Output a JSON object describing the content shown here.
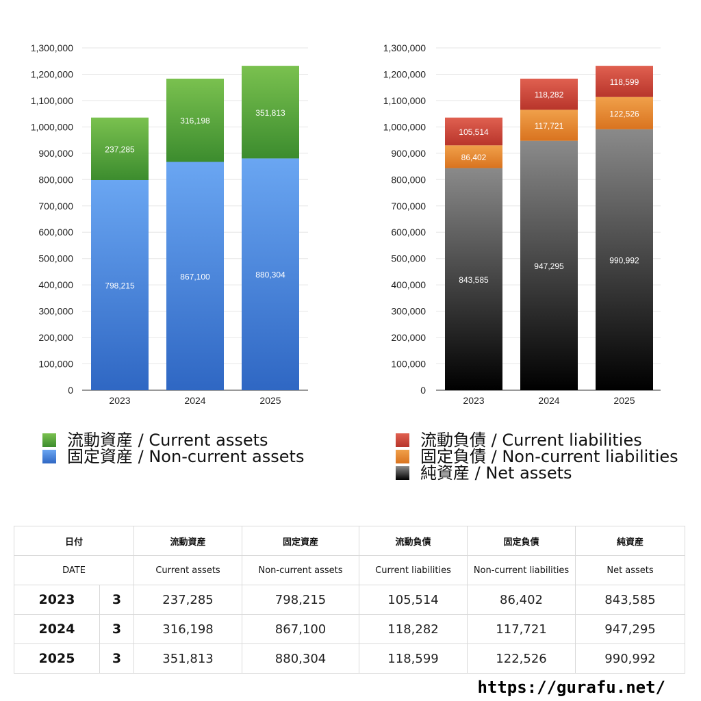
{
  "chart_data": [
    {
      "type": "bar",
      "stacked": true,
      "categories": [
        "2023",
        "2024",
        "2025"
      ],
      "ylim": [
        0,
        1300000
      ],
      "yticks": [
        "0",
        "100,000",
        "200,000",
        "300,000",
        "400,000",
        "500,000",
        "600,000",
        "700,000",
        "800,000",
        "900,000",
        "1,000,000",
        "1,100,000",
        "1,200,000",
        "1,300,000"
      ],
      "series": [
        {
          "name": "固定資産 / Non-current assets",
          "values": [
            798215,
            867100,
            880304
          ],
          "labels": [
            "798,215",
            "867,100",
            "880,304"
          ],
          "color_top": "#6aa6f2",
          "color_bottom": "#2f67c3"
        },
        {
          "name": "流動資産 / Current assets",
          "values": [
            237285,
            316198,
            351813
          ],
          "labels": [
            "237,285",
            "316,198",
            "351,813"
          ],
          "color_top": "#7ac14f",
          "color_bottom": "#3c8c2e"
        }
      ]
    },
    {
      "type": "bar",
      "stacked": true,
      "categories": [
        "2023",
        "2024",
        "2025"
      ],
      "ylim": [
        0,
        1300000
      ],
      "yticks": [
        "0",
        "100,000",
        "200,000",
        "300,000",
        "400,000",
        "500,000",
        "600,000",
        "700,000",
        "800,000",
        "900,000",
        "1,000,000",
        "1,100,000",
        "1,200,000",
        "1,300,000"
      ],
      "series": [
        {
          "name": "純資産 / Net assets",
          "values": [
            843585,
            947295,
            990992
          ],
          "labels": [
            "843,585",
            "947,295",
            "990,992"
          ],
          "color_top": "#8a8a8a",
          "color_bottom": "#000000"
        },
        {
          "name": "固定負債 / Non-current liabilities",
          "values": [
            86402,
            117721,
            122526
          ],
          "labels": [
            "86,402",
            "117,721",
            "122,526"
          ],
          "color_top": "#f0a04a",
          "color_bottom": "#d9731f"
        },
        {
          "name": "流動負債 / Current liabilities",
          "values": [
            105514,
            118282,
            118599
          ],
          "labels": [
            "105,514",
            "118,282",
            "118,599"
          ],
          "color_top": "#e06050",
          "color_bottom": "#b8352b"
        }
      ]
    }
  ],
  "legend_left": [
    "流動資産 / Current assets",
    "固定資産 / Non-current assets"
  ],
  "legend_right": [
    "流動負債 / Current liabilities",
    "固定負債 / Non-current liabilities",
    "純資産 / Net assets"
  ],
  "table": {
    "header_jp": [
      "日付",
      "流動資産",
      "固定資産",
      "流動負債",
      "固定負債",
      "純資産"
    ],
    "header_en": [
      "DATE",
      "Current assets",
      "Non-current assets",
      "Current liabilities",
      "Non-current liabilities",
      "Net assets"
    ],
    "rows": [
      {
        "year": "2023",
        "month": "3",
        "cells": [
          "237,285",
          "798,215",
          "105,514",
          "86,402",
          "843,585"
        ]
      },
      {
        "year": "2024",
        "month": "3",
        "cells": [
          "316,198",
          "867,100",
          "118,282",
          "117,721",
          "947,295"
        ]
      },
      {
        "year": "2025",
        "month": "3",
        "cells": [
          "351,813",
          "880,304",
          "118,599",
          "122,526",
          "990,992"
        ]
      }
    ]
  },
  "site": "https://gurafu.net/"
}
